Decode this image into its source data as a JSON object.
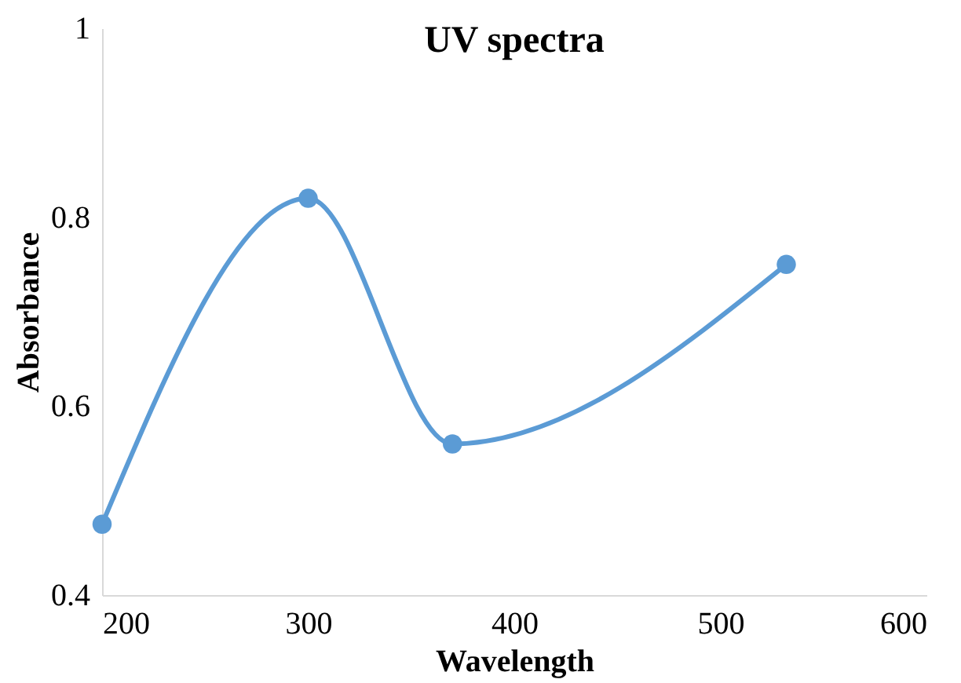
{
  "chart_data": {
    "type": "line",
    "title": "UV spectra",
    "xlabel": "Wavelength",
    "ylabel": "Absorbance",
    "x": [
      200,
      300,
      370,
      532
    ],
    "series": [
      {
        "color": "#5b9bd5",
        "values": [
          0.475,
          0.82,
          0.56,
          0.75
        ]
      }
    ],
    "xlim": [
      200,
      600
    ],
    "xticks": [
      200,
      300,
      400,
      500,
      600
    ],
    "ylim": [
      0.4,
      1
    ],
    "yticks": [
      0.4,
      0.6,
      0.8,
      1
    ],
    "grid": false,
    "marker": "circle",
    "line_style": "solid"
  }
}
